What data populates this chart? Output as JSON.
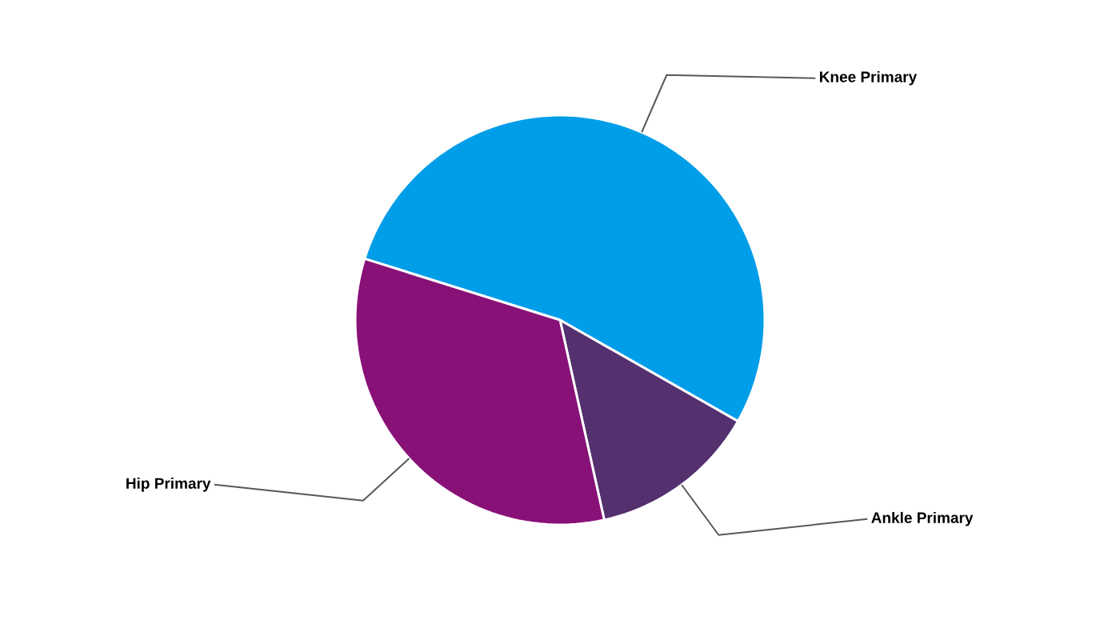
{
  "chart_data": {
    "type": "pie",
    "categories": [
      "Knee Primary",
      "Ankle Primary",
      "Hip Primary"
    ],
    "values": [
      53.4,
      13.3,
      33.3
    ],
    "colors": [
      "#009de9",
      "#54306f",
      "#881177"
    ]
  }
}
